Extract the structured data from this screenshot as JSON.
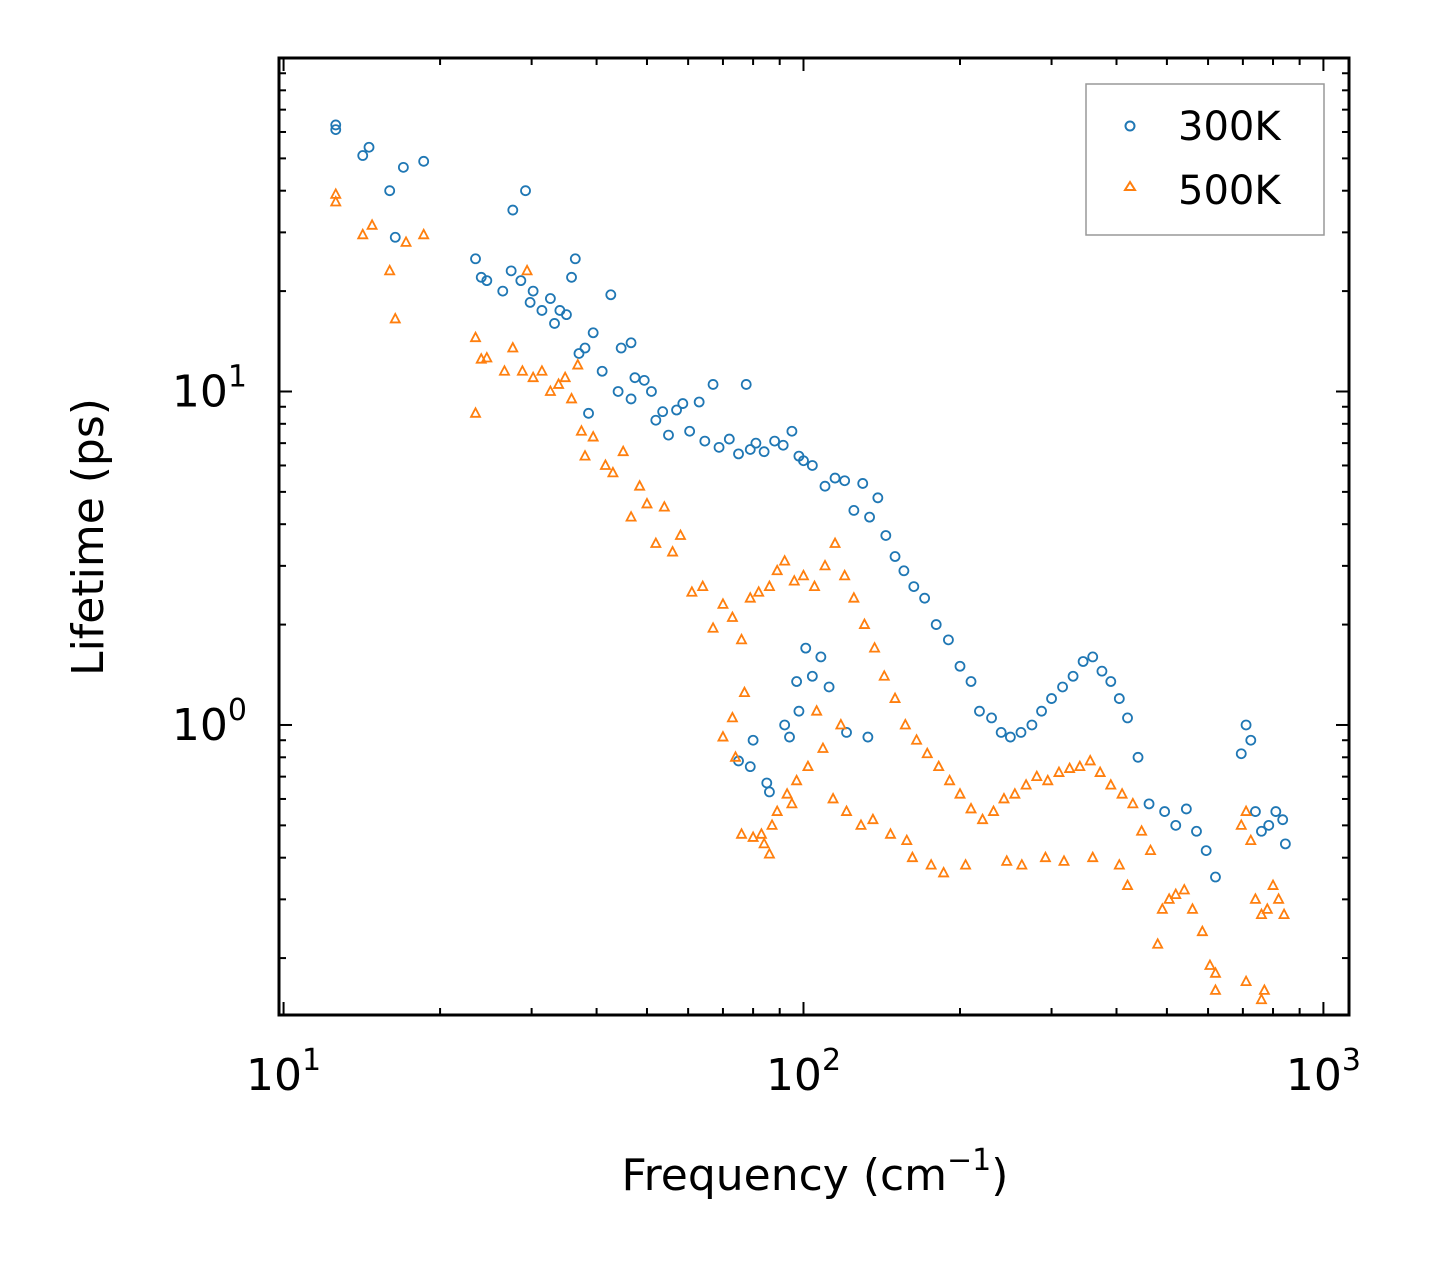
{
  "chart_data": {
    "type": "scatter",
    "title": "",
    "xlabel": "Frequency (cm",
    "xlabel_sup": "−1",
    "xlabel_suffix": ")",
    "ylabel": "Lifetime (ps)",
    "xscale": "log",
    "yscale": "log",
    "xlim": [
      9.8,
      1120
    ],
    "ylim": [
      0.135,
      100
    ],
    "x_ticks": [
      {
        "base": "10",
        "exp": "1",
        "value": 10
      },
      {
        "base": "10",
        "exp": "2",
        "value": 100
      },
      {
        "base": "10",
        "exp": "3",
        "value": 1000
      }
    ],
    "y_ticks": [
      {
        "base": "10",
        "exp": "0",
        "value": 1
      },
      {
        "base": "10",
        "exp": "1",
        "value": 10
      }
    ],
    "legend_position": "top-right",
    "series": [
      {
        "name": "300K",
        "color": "#1f77b4",
        "marker": "circle-open",
        "points": [
          [
            12.6,
            63
          ],
          [
            12.6,
            61
          ],
          [
            14.2,
            51
          ],
          [
            14.6,
            54
          ],
          [
            16.0,
            40
          ],
          [
            17.0,
            47
          ],
          [
            18.6,
            49
          ],
          [
            16.4,
            29
          ],
          [
            23.4,
            25
          ],
          [
            24,
            22
          ],
          [
            24.6,
            21.5
          ],
          [
            26.4,
            20
          ],
          [
            27.4,
            23
          ],
          [
            27.6,
            35
          ],
          [
            28.6,
            21.5
          ],
          [
            29.2,
            40
          ],
          [
            29.8,
            18.5
          ],
          [
            30.2,
            20
          ],
          [
            31.4,
            17.5
          ],
          [
            32.6,
            19
          ],
          [
            33.2,
            16
          ],
          [
            34.0,
            17.5
          ],
          [
            35.0,
            17
          ],
          [
            35.8,
            22
          ],
          [
            36.4,
            25
          ],
          [
            37.0,
            13
          ],
          [
            38.0,
            13.5
          ],
          [
            39.4,
            15
          ],
          [
            42.6,
            19.5
          ],
          [
            44.6,
            13.5
          ],
          [
            46.6,
            14
          ],
          [
            38.6,
            8.6
          ],
          [
            41.0,
            11.5
          ],
          [
            44.0,
            10
          ],
          [
            46.6,
            9.5
          ],
          [
            47.4,
            11
          ],
          [
            49.4,
            10.8
          ],
          [
            51,
            10
          ],
          [
            52,
            8.2
          ],
          [
            53.6,
            8.7
          ],
          [
            55,
            7.4
          ],
          [
            57,
            8.8
          ],
          [
            58.6,
            9.2
          ],
          [
            60.4,
            7.6
          ],
          [
            63,
            9.3
          ],
          [
            64.6,
            7.1
          ],
          [
            67,
            10.5
          ],
          [
            68.8,
            6.8
          ],
          [
            72,
            7.2
          ],
          [
            75,
            6.5
          ],
          [
            77.6,
            10.5
          ],
          [
            79,
            6.7
          ],
          [
            81,
            7.0
          ],
          [
            84,
            6.6
          ],
          [
            88,
            7.1
          ],
          [
            91.4,
            6.9
          ],
          [
            95,
            7.6
          ],
          [
            98,
            6.4
          ],
          [
            100,
            6.2
          ],
          [
            104,
            6.0
          ],
          [
            110,
            5.2
          ],
          [
            115,
            5.5
          ],
          [
            120,
            5.4
          ],
          [
            125,
            4.4
          ],
          [
            130,
            5.3
          ],
          [
            134,
            4.2
          ],
          [
            139,
            4.8
          ],
          [
            144,
            3.7
          ],
          [
            150,
            3.2
          ],
          [
            156,
            2.9
          ],
          [
            163,
            2.6
          ],
          [
            171,
            2.4
          ],
          [
            180,
            2.0
          ],
          [
            190,
            1.8
          ],
          [
            200,
            1.5
          ],
          [
            210,
            1.35
          ],
          [
            218,
            1.1
          ],
          [
            230,
            1.05
          ],
          [
            240,
            0.95
          ],
          [
            250,
            0.92
          ],
          [
            262,
            0.95
          ],
          [
            275,
            1.0
          ],
          [
            287,
            1.1
          ],
          [
            300,
            1.2
          ],
          [
            315,
            1.3
          ],
          [
            330,
            1.4
          ],
          [
            345,
            1.55
          ],
          [
            360,
            1.6
          ],
          [
            375,
            1.45
          ],
          [
            390,
            1.35
          ],
          [
            405,
            1.2
          ],
          [
            420,
            1.05
          ],
          [
            440,
            0.8
          ],
          [
            462,
            0.58
          ],
          [
            495,
            0.55
          ],
          [
            520,
            0.5
          ],
          [
            545,
            0.56
          ],
          [
            570,
            0.48
          ],
          [
            595,
            0.42
          ],
          [
            620,
            0.35
          ],
          [
            695,
            0.82
          ],
          [
            710,
            1.0
          ],
          [
            725,
            0.9
          ],
          [
            740,
            0.55
          ],
          [
            760,
            0.48
          ],
          [
            785,
            0.5
          ],
          [
            810,
            0.55
          ],
          [
            835,
            0.52
          ],
          [
            845,
            0.44
          ],
          [
            75,
            0.78
          ],
          [
            79,
            0.75
          ],
          [
            86,
            0.63
          ],
          [
            94,
            0.92
          ],
          [
            98,
            1.1
          ],
          [
            104,
            1.4
          ],
          [
            112,
            1.3
          ],
          [
            121,
            0.95
          ],
          [
            133,
            0.92
          ],
          [
            85,
            0.67
          ],
          [
            92,
            1.0
          ],
          [
            97,
            1.35
          ],
          [
            108,
            1.6
          ],
          [
            80,
            0.9
          ],
          [
            101,
            1.7
          ]
        ]
      },
      {
        "name": "500K",
        "color": "#ff7f0e",
        "marker": "triangle-open",
        "points": [
          [
            12.6,
            39
          ],
          [
            12.6,
            37
          ],
          [
            14.2,
            29.5
          ],
          [
            14.8,
            31.5
          ],
          [
            16.0,
            23
          ],
          [
            16.4,
            16.5
          ],
          [
            17.2,
            28
          ],
          [
            18.6,
            29.5
          ],
          [
            23.4,
            14.5
          ],
          [
            23.4,
            8.6
          ],
          [
            24,
            12.5
          ],
          [
            24.6,
            12.6
          ],
          [
            26.6,
            11.5
          ],
          [
            27.6,
            13.5
          ],
          [
            28.8,
            11.5
          ],
          [
            29.4,
            23
          ],
          [
            30.2,
            11
          ],
          [
            31.4,
            11.5
          ],
          [
            32.6,
            10
          ],
          [
            33.8,
            10.5
          ],
          [
            34.8,
            11
          ],
          [
            35.8,
            9.5
          ],
          [
            36.8,
            12
          ],
          [
            37.4,
            7.6
          ],
          [
            38.0,
            6.4
          ],
          [
            39.4,
            7.3
          ],
          [
            41.6,
            6.0
          ],
          [
            43,
            5.7
          ],
          [
            45,
            6.6
          ],
          [
            46.6,
            4.2
          ],
          [
            48.4,
            5.2
          ],
          [
            50,
            4.6
          ],
          [
            52,
            3.5
          ],
          [
            54,
            4.5
          ],
          [
            56,
            3.3
          ],
          [
            58,
            3.7
          ],
          [
            61,
            2.5
          ],
          [
            64,
            2.6
          ],
          [
            67,
            1.95
          ],
          [
            70,
            2.3
          ],
          [
            73,
            2.1
          ],
          [
            76,
            1.8
          ],
          [
            79,
            2.4
          ],
          [
            82,
            2.5
          ],
          [
            86,
            2.6
          ],
          [
            89,
            2.9
          ],
          [
            92,
            3.1
          ],
          [
            96,
            2.7
          ],
          [
            100,
            2.8
          ],
          [
            105,
            2.6
          ],
          [
            110,
            3.0
          ],
          [
            115,
            3.5
          ],
          [
            120,
            2.8
          ],
          [
            125,
            2.4
          ],
          [
            131,
            2.0
          ],
          [
            137,
            1.7
          ],
          [
            143,
            1.4
          ],
          [
            150,
            1.2
          ],
          [
            157,
            1.0
          ],
          [
            165,
            0.9
          ],
          [
            173,
            0.82
          ],
          [
            182,
            0.75
          ],
          [
            191,
            0.68
          ],
          [
            200,
            0.62
          ],
          [
            210,
            0.56
          ],
          [
            221,
            0.52
          ],
          [
            232,
            0.55
          ],
          [
            243,
            0.6
          ],
          [
            255,
            0.62
          ],
          [
            268,
            0.66
          ],
          [
            281,
            0.7
          ],
          [
            295,
            0.68
          ],
          [
            310,
            0.72
          ],
          [
            325,
            0.74
          ],
          [
            340,
            0.75
          ],
          [
            356,
            0.78
          ],
          [
            372,
            0.72
          ],
          [
            390,
            0.66
          ],
          [
            410,
            0.62
          ],
          [
            430,
            0.58
          ],
          [
            447,
            0.48
          ],
          [
            465,
            0.42
          ],
          [
            490,
            0.28
          ],
          [
            505,
            0.3
          ],
          [
            520,
            0.31
          ],
          [
            540,
            0.32
          ],
          [
            560,
            0.28
          ],
          [
            585,
            0.24
          ],
          [
            605,
            0.19
          ],
          [
            620,
            0.18
          ],
          [
            695,
            0.5
          ],
          [
            710,
            0.55
          ],
          [
            725,
            0.45
          ],
          [
            740,
            0.3
          ],
          [
            760,
            0.27
          ],
          [
            780,
            0.28
          ],
          [
            800,
            0.33
          ],
          [
            820,
            0.3
          ],
          [
            840,
            0.27
          ],
          [
            76,
            0.47
          ],
          [
            80,
            0.46
          ],
          [
            84,
            0.44
          ],
          [
            86,
            0.41
          ],
          [
            83,
            0.47
          ],
          [
            89,
            0.55
          ],
          [
            93,
            0.62
          ],
          [
            97,
            0.68
          ],
          [
            102,
            0.75
          ],
          [
            109,
            0.85
          ],
          [
            114,
            0.6
          ],
          [
            121,
            0.55
          ],
          [
            129,
            0.5
          ],
          [
            136,
            0.52
          ],
          [
            147,
            0.47
          ],
          [
            158,
            0.45
          ],
          [
            162,
            0.4
          ],
          [
            176,
            0.38
          ],
          [
            186,
            0.36
          ],
          [
            205,
            0.38
          ],
          [
            246,
            0.39
          ],
          [
            263,
            0.38
          ],
          [
            292,
            0.4
          ],
          [
            317,
            0.39
          ],
          [
            360,
            0.4
          ],
          [
            405,
            0.38
          ],
          [
            420,
            0.33
          ],
          [
            480,
            0.22
          ],
          [
            620,
            0.16
          ],
          [
            710,
            0.17
          ],
          [
            760,
            0.15
          ],
          [
            770,
            0.16
          ],
          [
            70,
            0.92
          ],
          [
            73,
            1.05
          ],
          [
            77,
            1.25
          ],
          [
            74,
            0.8
          ],
          [
            87,
            0.5
          ],
          [
            95,
            0.58
          ],
          [
            106,
            1.1
          ],
          [
            118,
            1.0
          ]
        ]
      }
    ]
  },
  "legend": {
    "items": [
      {
        "label": "300K"
      },
      {
        "label": "500K"
      }
    ]
  }
}
